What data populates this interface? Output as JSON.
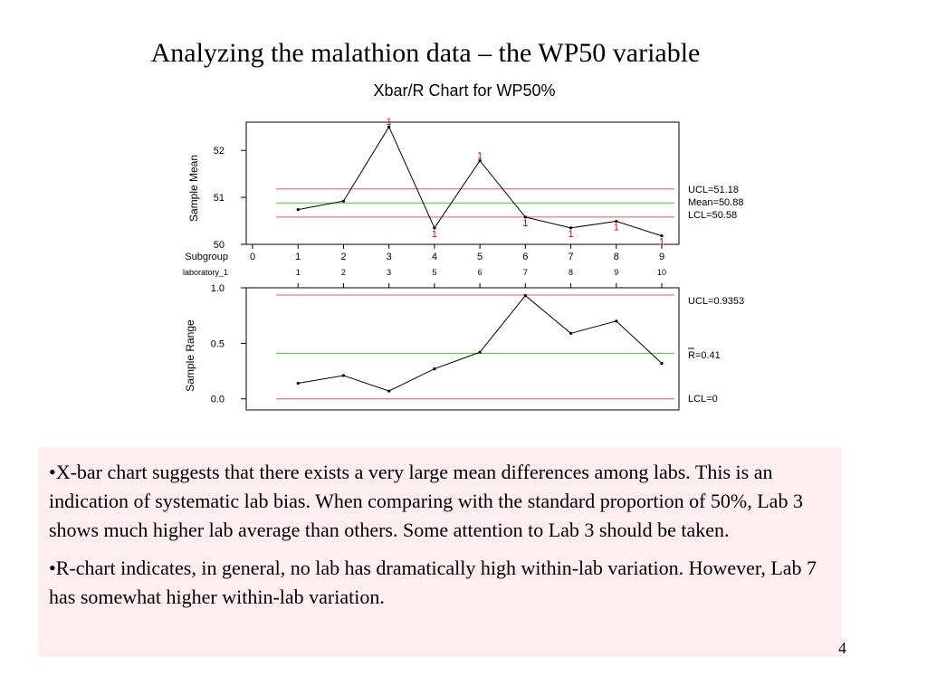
{
  "slide": {
    "title": "Analyzing the malathion data – the WP50 variable",
    "page_number": "4"
  },
  "notes": [
    "•X-bar chart suggests that there exists a very large mean differences among labs. This is an indication of systematic lab bias. When comparing with the standard proportion of 50%, Lab 3 shows much higher lab average than others. Some attention to Lab 3 should be taken.",
    "•R-chart indicates, in general, no lab has dramatically high within-lab variation. However, Lab 7 has somewhat higher within-lab variation."
  ],
  "chart_data": {
    "title": "Xbar/R Chart for WP50%",
    "colors": {
      "limit": "#e8585e",
      "center": "#2fd12f",
      "series": "#000000",
      "flag": "#e00000"
    },
    "subgroup_label": "Subgroup",
    "subgroups": [
      "0",
      "1",
      "2",
      "3",
      "4",
      "5",
      "6",
      "7",
      "8",
      "9"
    ],
    "lab_label": "laboratory_1",
    "labs": [
      "1",
      "2",
      "3",
      "5",
      "6",
      "7",
      "8",
      "9",
      "10"
    ],
    "xbar": {
      "type": "line",
      "ylabel": "Sample Mean",
      "ylim": [
        50,
        52.6
      ],
      "yticks": [
        "50",
        "51",
        "52"
      ],
      "x": [
        1,
        2,
        3,
        4,
        5,
        6,
        7,
        8,
        9
      ],
      "values": [
        50.74,
        50.92,
        52.5,
        50.35,
        51.78,
        50.58,
        50.35,
        50.49,
        50.18
      ],
      "flags": [
        false,
        false,
        true,
        true,
        true,
        true,
        true,
        true,
        true
      ],
      "flag_symbol": "1",
      "ucl": 51.18,
      "center": 50.88,
      "lcl": 50.58,
      "ucl_label": "UCL=51.18",
      "center_label": "Mean=50.88",
      "lcl_label": "LCL=50.58"
    },
    "range": {
      "type": "line",
      "ylabel": "Sample Range",
      "ylim": [
        -0.1,
        1.0
      ],
      "yticks": [
        "0.0",
        "0.5",
        "1.0"
      ],
      "x": [
        1,
        2,
        3,
        4,
        5,
        6,
        7,
        8,
        9
      ],
      "values": [
        0.14,
        0.21,
        0.07,
        0.27,
        0.42,
        0.93,
        0.59,
        0.7,
        0.32
      ],
      "ucl": 0.9353,
      "center": 0.41,
      "lcl": 0,
      "ucl_label": "UCL=0.9353",
      "center_label": "R=0.41",
      "lcl_label": "LCL=0"
    }
  }
}
